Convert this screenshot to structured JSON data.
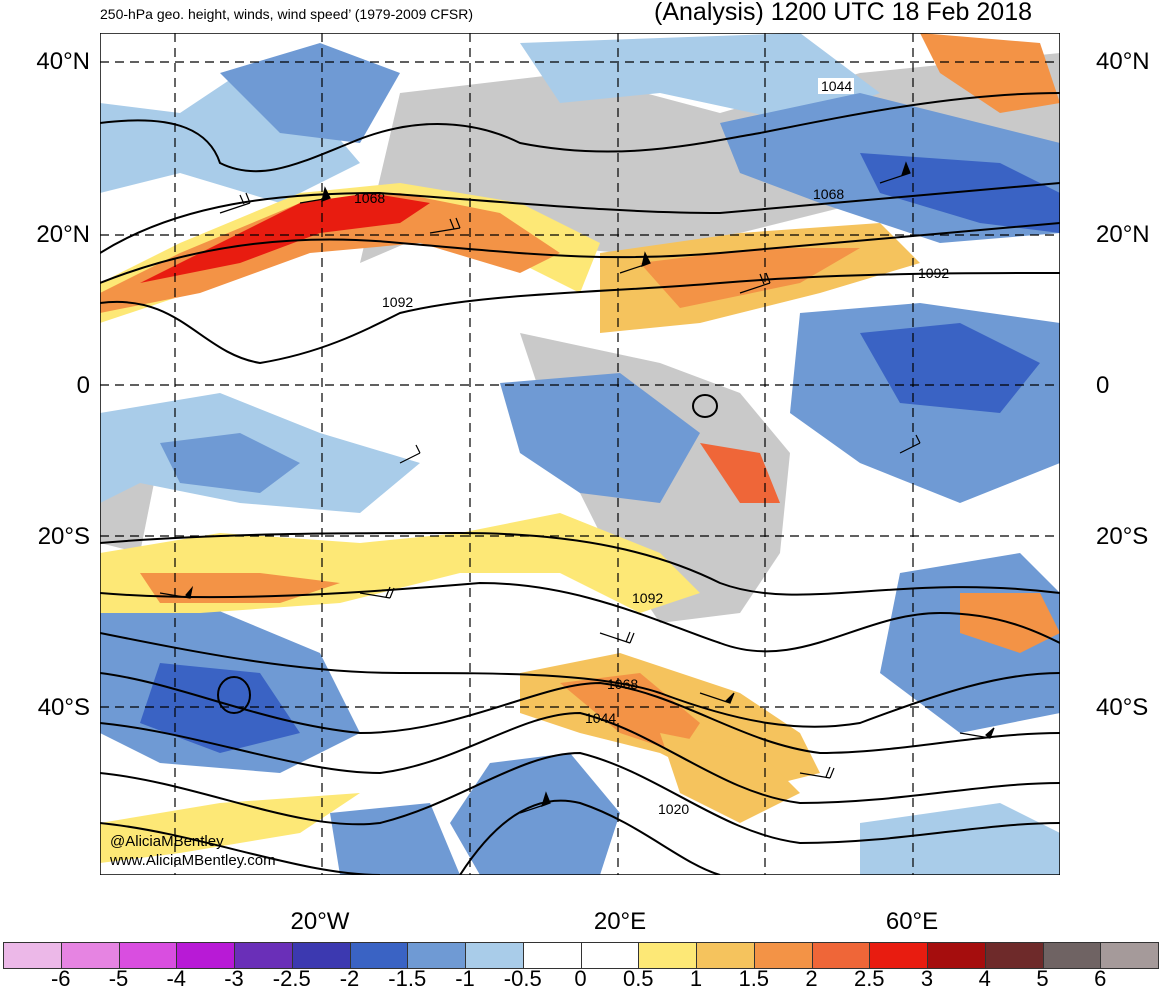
{
  "header": {
    "left_title": "250-hPa geo. height, winds, wind speed’ (1979-2009 CFSR)",
    "right_title": "(Analysis) 1200 UTC 18 Feb 2018"
  },
  "lat_labels": [
    "40°N",
    "20°N",
    "0",
    "20°S",
    "40°S"
  ],
  "lon_labels": [
    "20°W",
    "20°E",
    "60°E"
  ],
  "contour_labels": [
    "1044",
    "1068",
    "1068",
    "1092",
    "1092",
    "1092",
    "1068",
    "1044",
    "1020"
  ],
  "credits": [
    "@AliciaMBentley",
    "www.AliciaMBentley.com"
  ],
  "colorbar": {
    "labels": [
      "-6",
      "-5",
      "-4",
      "-3",
      "-2.5",
      "-2",
      "-1.5",
      "-1",
      "-0.5",
      "0",
      "0.5",
      "1",
      "1.5",
      "2",
      "2.5",
      "3",
      "4",
      "5",
      "6"
    ],
    "colors": [
      "#ecb8e8",
      "#e684e2",
      "#d94ee0",
      "#b81ad6",
      "#6a2fb8",
      "#3c39b0",
      "#3a63c4",
      "#6f9ad4",
      "#a9cce9",
      "#ffffff",
      "#ffffff",
      "#fde876",
      "#f5c35d",
      "#f39346",
      "#ef6638",
      "#e81c10",
      "#a50d0d",
      "#6e2a2a",
      "#6f6363",
      "#a59a9a"
    ]
  }
}
